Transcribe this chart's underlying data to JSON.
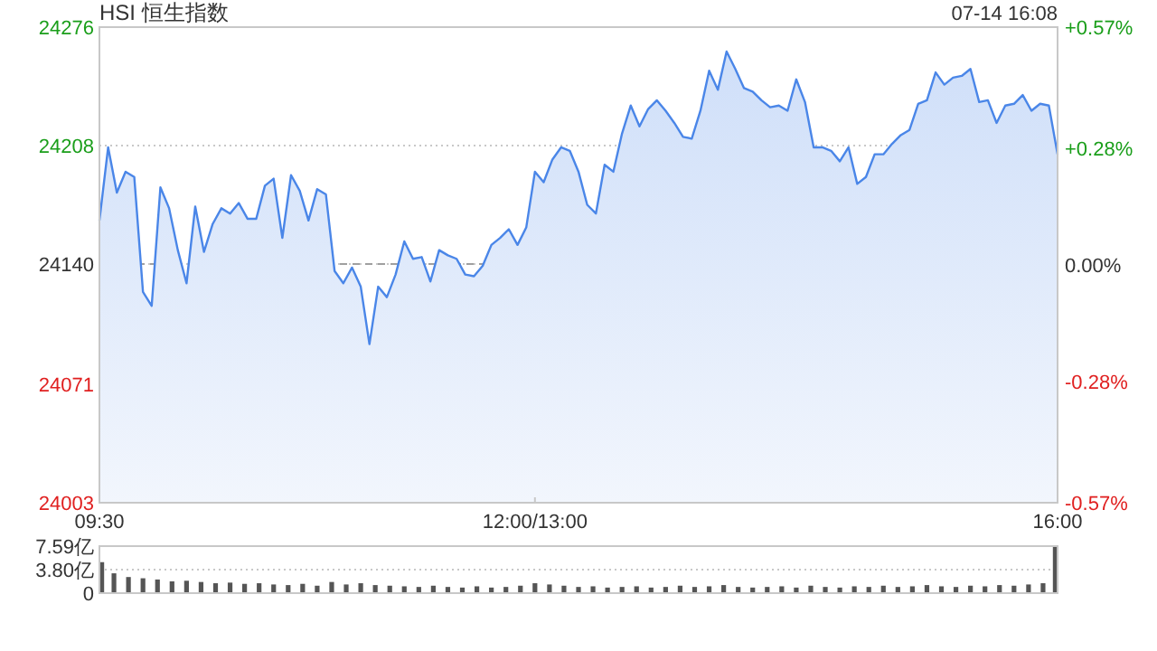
{
  "chart_data": [
    {
      "type": "area",
      "title": "HSI 恒生指数",
      "subtitle": "07-14 16:08",
      "color": "#4a86e8",
      "grid": "y",
      "categories": [
        "09:30",
        null,
        null,
        null,
        null,
        null,
        null,
        null,
        null,
        null,
        null,
        null,
        null,
        null,
        null,
        null,
        null,
        null,
        null,
        null,
        null,
        null,
        null,
        null,
        null,
        null,
        null,
        null,
        null,
        null,
        null,
        null,
        null,
        null,
        null,
        null,
        null,
        null,
        null,
        null,
        null,
        null,
        null,
        null,
        null,
        null,
        null,
        null,
        null,
        null,
        "12:00/13:00",
        null,
        null,
        null,
        null,
        null,
        null,
        null,
        null,
        null,
        null,
        null,
        null,
        null,
        null,
        null,
        null,
        null,
        null,
        null,
        null,
        null,
        null,
        null,
        null,
        null,
        null,
        null,
        null,
        null,
        null,
        null,
        null,
        null,
        null,
        null,
        null,
        null,
        null,
        null,
        null,
        null,
        null,
        null,
        null,
        null,
        null,
        null,
        null,
        null,
        null,
        null,
        null,
        null,
        null,
        null,
        null,
        null,
        null,
        null,
        "16:00"
      ],
      "values": [
        24165,
        24207,
        24181,
        24193,
        24190,
        24124,
        24116,
        24184,
        24172,
        24148,
        24129,
        24173,
        24147,
        24163,
        24172,
        24169,
        24175,
        24166,
        24166,
        24185,
        24189,
        24155,
        24191,
        24182,
        24165,
        24183,
        24180,
        24136,
        24129,
        24138,
        24127,
        24094,
        24127,
        24121,
        24134,
        24153,
        24143,
        24144,
        24130,
        24148,
        24145,
        24143,
        24134,
        24133,
        24139,
        24151,
        24155,
        24160,
        24151,
        24161,
        24193,
        24187,
        24200,
        24207,
        24205,
        24193,
        24174,
        24169,
        24197,
        24193,
        24215,
        24231,
        24219,
        24229,
        24234,
        24228,
        24221,
        24213,
        24212,
        24228,
        24251,
        24240,
        24262,
        24252,
        24241,
        24239,
        24234,
        24230,
        24231,
        24228,
        24246,
        24233,
        24207,
        24207,
        24205,
        24199,
        24207,
        24186,
        24190,
        24203,
        24203,
        24209,
        24214,
        24217,
        24232,
        24234,
        24250,
        24243,
        24247,
        24248,
        24252,
        24233,
        24234,
        24221,
        24231,
        24232,
        24237,
        24228,
        24232,
        24231,
        24203
      ],
      "ylim": [
        24003,
        24276
      ],
      "yticks": [
        24003,
        24071,
        24140,
        24208,
        24276
      ],
      "y2lim": [
        -0.57,
        0.57
      ],
      "y2ticks": [
        {
          "value": -0.57,
          "label": "-0.57%"
        },
        {
          "value": -0.28,
          "label": "-0.28%"
        },
        {
          "value": 0,
          "label": "0.00%"
        },
        {
          "value": 0.28,
          "label": "+0.28%"
        },
        {
          "value": 0.57,
          "label": "+0.57%"
        }
      ],
      "ref_lines": [
        {
          "axis": "y",
          "value": 24140
        }
      ]
    },
    {
      "type": "bar",
      "color": "#555555",
      "grid": "y",
      "tick_labels": "y",
      "categories": [
        null,
        null,
        null,
        null,
        null,
        null,
        null,
        null,
        null,
        null,
        null,
        null,
        null,
        null,
        null,
        null,
        null,
        null,
        null,
        null,
        null,
        null,
        null,
        null,
        null,
        null,
        null,
        null,
        null,
        null,
        null,
        null,
        null,
        null,
        null,
        null,
        null,
        null,
        null,
        null,
        null,
        null,
        null,
        null,
        null,
        null,
        null,
        null,
        null,
        null,
        null,
        null,
        null,
        null,
        null,
        null,
        null,
        null,
        null,
        null,
        null,
        null,
        null,
        null,
        null,
        null,
        null
      ],
      "values": [
        5.0,
        3.2,
        2.6,
        2.4,
        2.2,
        1.9,
        2.0,
        1.8,
        1.6,
        1.7,
        1.5,
        1.6,
        1.4,
        1.3,
        1.5,
        1.2,
        1.8,
        1.4,
        1.6,
        1.3,
        1.2,
        1.1,
        1.0,
        1.2,
        1.0,
        0.9,
        1.1,
        0.9,
        1.0,
        1.2,
        1.6,
        1.4,
        1.2,
        1.0,
        1.1,
        0.9,
        1.0,
        1.1,
        0.9,
        1.0,
        1.2,
        1.0,
        1.1,
        1.3,
        1.0,
        0.9,
        1.0,
        1.1,
        0.9,
        1.2,
        1.0,
        0.9,
        1.1,
        1.0,
        1.2,
        1.0,
        1.1,
        1.3,
        1.1,
        1.0,
        1.2,
        1.1,
        1.3,
        1.2,
        1.4,
        1.6,
        7.5
      ],
      "ylim": [
        0,
        7.59
      ],
      "yticks": [
        0,
        {
          "value": 3.8,
          "label": "3.80亿"
        },
        {
          "value": 7.59,
          "label": "7.59亿"
        }
      ]
    }
  ]
}
